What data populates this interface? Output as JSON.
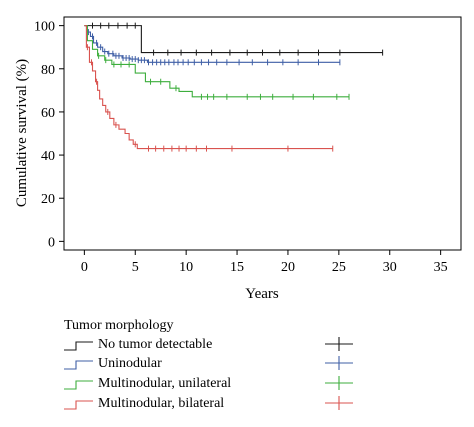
{
  "chart_data": {
    "type": "line",
    "step": true,
    "xlabel": "Years",
    "ylabel": "Cumulative survival (%)",
    "xlim": [
      -2,
      37
    ],
    "ylim": [
      -4,
      104
    ],
    "xticks": [
      0,
      5,
      10,
      15,
      20,
      25,
      30,
      35
    ],
    "yticks": [
      0,
      20,
      40,
      60,
      80,
      100
    ],
    "legend_title": "Tumor morphology",
    "legend_position": "below",
    "series": [
      {
        "name": "No tumor detectable",
        "color": "#1a1a1a",
        "points": [
          [
            0,
            100
          ],
          [
            5.6,
            100
          ],
          [
            5.6,
            87.5
          ],
          [
            29.3,
            87.5
          ]
        ],
        "censor": [
          0.8,
          1.6,
          2.4,
          3.3,
          4.2,
          5.0,
          6.8,
          8.2,
          9.5,
          11.0,
          12.5,
          14.3,
          16.0,
          17.5,
          19.2,
          21.0,
          23.0,
          25.1,
          29.3
        ]
      },
      {
        "name": "Uninodular",
        "color": "#3f5fa6",
        "points": [
          [
            0,
            100
          ],
          [
            0.3,
            97
          ],
          [
            0.6,
            95
          ],
          [
            0.9,
            92
          ],
          [
            1.3,
            90
          ],
          [
            1.8,
            88
          ],
          [
            2.3,
            87
          ],
          [
            2.9,
            86
          ],
          [
            3.7,
            85
          ],
          [
            4.5,
            84.5
          ],
          [
            5.3,
            84
          ],
          [
            6.2,
            83
          ],
          [
            25.1,
            83
          ]
        ],
        "censor": [
          0.4,
          0.8,
          1.2,
          1.6,
          2.0,
          2.4,
          2.8,
          3.1,
          3.4,
          3.8,
          4.1,
          4.4,
          4.7,
          5.0,
          5.3,
          5.6,
          5.9,
          6.3,
          6.7,
          7.1,
          7.5,
          7.9,
          8.3,
          8.8,
          9.2,
          9.7,
          10.2,
          10.8,
          11.5,
          12.2,
          13.0,
          14.0,
          15.2,
          16.5,
          18.0,
          19.5,
          21.0,
          23.0,
          25.1
        ]
      },
      {
        "name": "Multinodular, unilateral",
        "color": "#3dae3d",
        "points": [
          [
            0,
            100
          ],
          [
            0.3,
            93
          ],
          [
            0.8,
            89
          ],
          [
            1.3,
            86
          ],
          [
            2.0,
            84
          ],
          [
            2.7,
            82
          ],
          [
            5.0,
            82
          ],
          [
            5.0,
            78
          ],
          [
            6.0,
            78
          ],
          [
            6.0,
            74
          ],
          [
            8.4,
            74
          ],
          [
            8.4,
            71
          ],
          [
            9.3,
            71
          ],
          [
            9.3,
            69.5
          ],
          [
            10.6,
            69.5
          ],
          [
            10.6,
            67
          ],
          [
            26.0,
            67
          ]
        ],
        "censor": [
          1.4,
          2.1,
          2.9,
          3.6,
          4.4,
          6.5,
          7.5,
          9.0,
          11.5,
          12.1,
          12.7,
          14.0,
          16.0,
          17.3,
          18.5,
          20.5,
          22.5,
          24.8,
          26.0
        ]
      },
      {
        "name": "Multinodular, bilateral",
        "color": "#d9534f",
        "points": [
          [
            0,
            100
          ],
          [
            0.2,
            90
          ],
          [
            0.5,
            83
          ],
          [
            0.8,
            79
          ],
          [
            1.1,
            74
          ],
          [
            1.3,
            70
          ],
          [
            1.5,
            66
          ],
          [
            1.8,
            63
          ],
          [
            2.1,
            60
          ],
          [
            2.5,
            57
          ],
          [
            2.9,
            54
          ],
          [
            3.4,
            52
          ],
          [
            4.0,
            50
          ],
          [
            4.4,
            47
          ],
          [
            4.8,
            45
          ],
          [
            5.2,
            43
          ],
          [
            24.4,
            43
          ]
        ],
        "censor": [
          0.3,
          0.7,
          1.2,
          2.3,
          3.1,
          5.0,
          6.3,
          7.0,
          7.8,
          8.6,
          9.3,
          10.0,
          11.0,
          12.0,
          14.5,
          20.0,
          24.4
        ]
      }
    ]
  }
}
